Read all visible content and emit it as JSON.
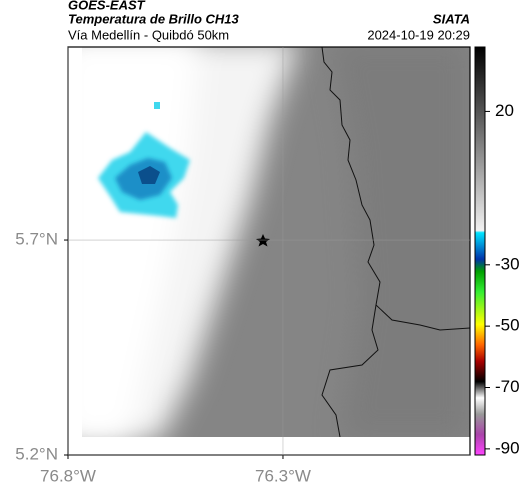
{
  "header": {
    "source": "GOES-EAST",
    "title": "Temperatura de Brillo CH13",
    "subtitle": "Vía Medellín - Quibdó 50km",
    "agency": "SIATA",
    "timestamp": "2024-10-19 20:29"
  },
  "map": {
    "xlim": [
      -76.8,
      -75.865
    ],
    "ylim": [
      5.2,
      6.149
    ],
    "xticks": [
      {
        "value": -76.8,
        "label": "76.8°W"
      },
      {
        "value": -76.3,
        "label": "76.3°W"
      }
    ],
    "yticks": [
      {
        "value": 5.7,
        "label": "5.7°N"
      },
      {
        "value": 5.2,
        "label": "5.2°N"
      }
    ]
  },
  "colorbar": {
    "lim": [
      -92,
      41
    ],
    "ticks": [
      20,
      -30,
      -50,
      -70,
      -90
    ]
  }
}
